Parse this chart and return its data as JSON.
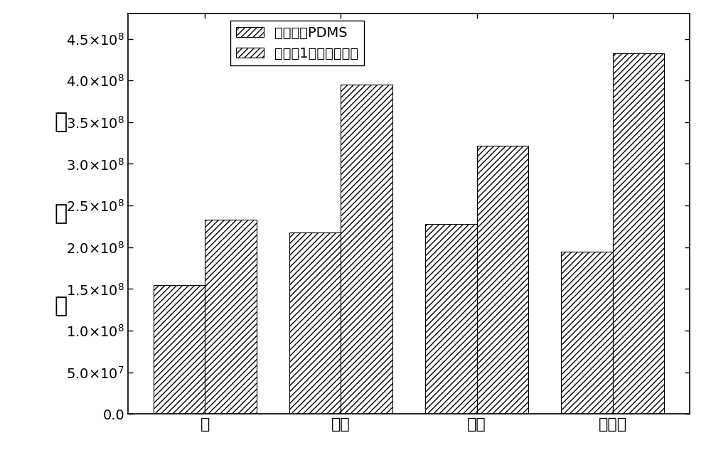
{
  "categories": [
    "苯",
    "甲苯",
    "乙苯",
    "二甲苯"
  ],
  "series1_label": "商用探针PDMS",
  "series2_label": "实施例1中所制莒取头",
  "series1_values": [
    155000000.0,
    218000000.0,
    228000000.0,
    195000000.0
  ],
  "series2_values": [
    233000000.0,
    395000000.0,
    322000000.0,
    433000000.0
  ],
  "ylabel_chars": [
    "峰",
    "面",
    "积"
  ],
  "ylim": [
    0,
    480000000.0
  ],
  "yticks": [
    0.0,
    50000000.0,
    100000000.0,
    150000000.0,
    200000000.0,
    250000000.0,
    300000000.0,
    350000000.0,
    400000000.0,
    450000000.0
  ],
  "hatch1": "////",
  "hatch2": "////",
  "bar_width": 0.38,
  "figsize": [
    10.0,
    6.47
  ],
  "dpi": 100,
  "background_color": "#ffffff",
  "tick_fontsize": 14,
  "label_fontsize": 22,
  "legend_fontsize": 14
}
